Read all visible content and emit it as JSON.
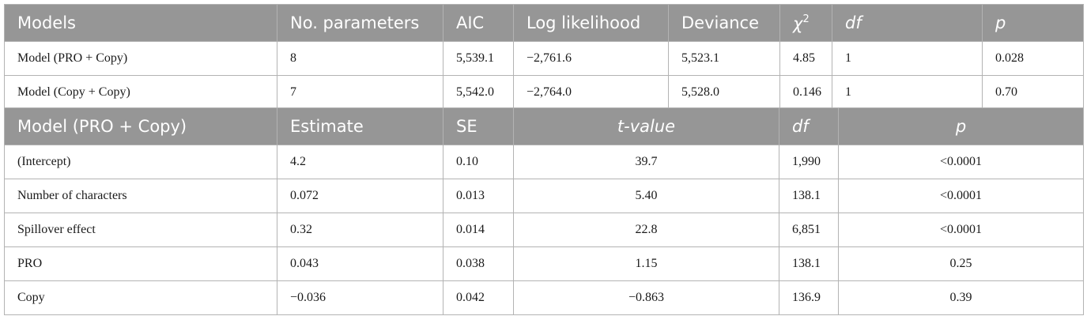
{
  "table1": {
    "headers": [
      "Models",
      "No. parameters",
      "AIC",
      "Log likelihood",
      "Deviance",
      "χ",
      "df",
      "p"
    ],
    "chi_sup": "2",
    "rows": [
      [
        "Model (PRO + Copy)",
        "8",
        "5,539.1",
        "−2,761.6",
        "5,523.1",
        "4.85",
        "1",
        "0.028"
      ],
      [
        "Model (Copy + Copy)",
        "7",
        "5,542.0",
        "−2,764.0",
        "5,528.0",
        "0.146",
        "1",
        "0.70"
      ]
    ]
  },
  "table2": {
    "headers": [
      "Model (PRO + Copy)",
      "Estimate",
      "SE",
      "t-value",
      "df",
      "p"
    ],
    "rows": [
      [
        "(Intercept)",
        "4.2",
        "0.10",
        "39.7",
        "1,990",
        "<0.0001"
      ],
      [
        "Number of characters",
        "0.072",
        "0.013",
        "5.40",
        "138.1",
        "<0.0001"
      ],
      [
        "Spillover effect",
        "0.32",
        "0.014",
        "22.8",
        "6,851",
        "<0.0001"
      ],
      [
        "PRO",
        "0.043",
        "0.038",
        "1.15",
        "138.1",
        "0.25"
      ],
      [
        "Copy",
        "−0.036",
        "0.042",
        "−0.863",
        "136.9",
        "0.39"
      ]
    ]
  }
}
